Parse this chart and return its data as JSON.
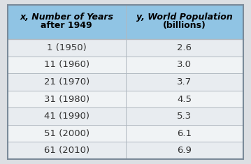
{
  "col1_header_line1": "x, Number of Years",
  "col1_header_line2": "after 1949",
  "col2_header_line1": "y, World Population",
  "col2_header_line2": "(billions)",
  "col1_data": [
    "1 (1950)",
    "11 (1960)",
    "21 (1970)",
    "31 (1980)",
    "41 (1990)",
    "51 (2000)",
    "61 (2010)"
  ],
  "col2_data": [
    "2.6",
    "3.0",
    "3.7",
    "4.5",
    "5.3",
    "6.1",
    "6.9"
  ],
  "header_bg_color": "#90C4E4",
  "row_bg_color_odd": "#E8ECF0",
  "row_bg_color_even": "#F0F3F5",
  "border_color": "#B0B8C0",
  "header_text_color": "#000000",
  "data_text_color": "#333333",
  "outer_border_color": "#7A8A99",
  "fig_bg_color": "#DCDFE3",
  "header_fontsize": 9.0,
  "data_fontsize": 9.5,
  "col_split": 0.5
}
